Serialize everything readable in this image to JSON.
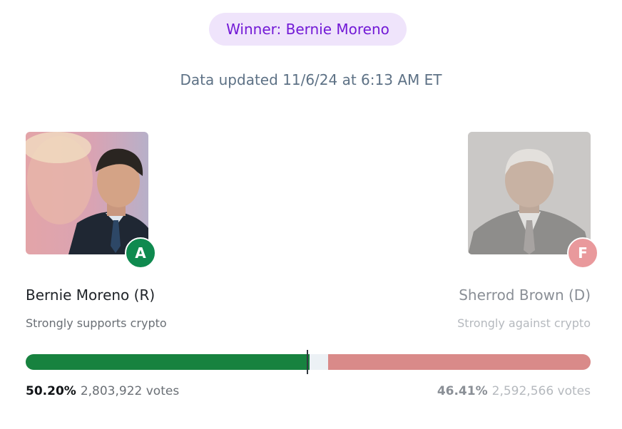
{
  "header": {
    "winner_label": "Winner: Bernie Moreno",
    "updated_text": "Data updated 11/6/24 at 6:13 AM ET"
  },
  "candidates": [
    {
      "name": "Bernie Moreno (R)",
      "stance": "Strongly supports crypto",
      "grade": "A",
      "grade_color": "#0f8a4f",
      "percent_label": "50.20%",
      "percent": 50.2,
      "votes_label": "2,803,922 votes",
      "bar_color": "#17823f",
      "photo_icon": "candidate-photo"
    },
    {
      "name": "Sherrod Brown (D)",
      "stance": "Strongly against crypto",
      "grade": "F",
      "grade_color": "#e9999c",
      "percent_label": "46.41%",
      "percent": 46.41,
      "votes_label": "2,592,566 votes",
      "bar_color": "#d98a89",
      "photo_icon": "candidate-photo"
    }
  ],
  "colors": {
    "winner_pill_bg": "#efe4fb",
    "winner_text": "#7219d6",
    "bar_background": "#ecf1f5"
  }
}
